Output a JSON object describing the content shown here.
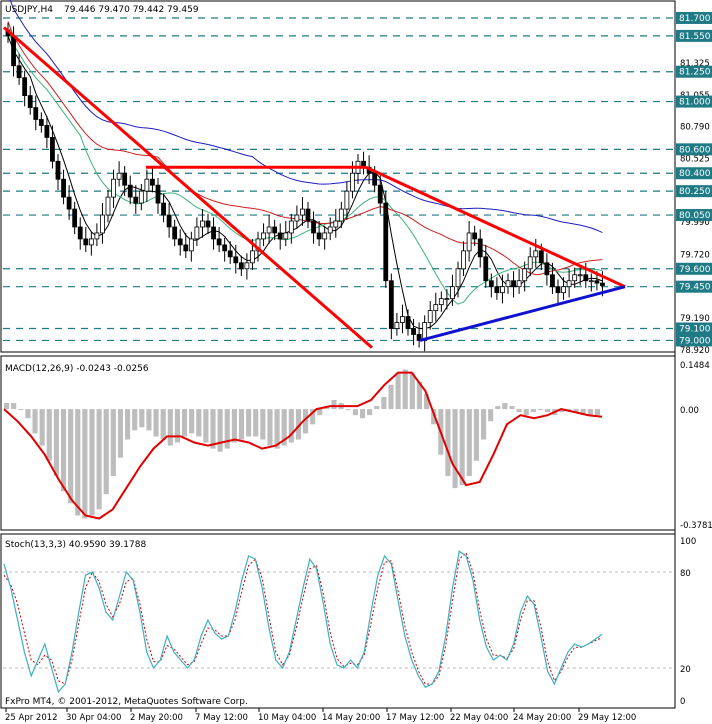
{
  "chart_data": [
    {
      "type": "candlestick",
      "panel": "price",
      "title": "USDJPY,H4",
      "ohlc_label": "79.446 79.470 79.442 79.459",
      "ylim": [
        78.92,
        81.75
      ],
      "ytick_labels": [
        "81.700",
        "81.550",
        "81.325",
        "81.250",
        "81.055",
        "81.000",
        "80.790",
        "80.600",
        "80.525",
        "80.400",
        "80.250",
        "80.050",
        "79.990",
        "79.720",
        "79.600",
        "79.455",
        "79.450",
        "79.190",
        "79.100",
        "79.000",
        "78.920"
      ],
      "level_tags": [
        {
          "label": "81.700",
          "value": 81.7
        },
        {
          "label": "81.550",
          "value": 81.55
        },
        {
          "label": "81.250",
          "value": 81.25
        },
        {
          "label": "81.000",
          "value": 81.0
        },
        {
          "label": "80.600",
          "value": 80.6
        },
        {
          "label": "80.400",
          "value": 80.4
        },
        {
          "label": "80.250",
          "value": 80.25
        },
        {
          "label": "80.050",
          "value": 80.05
        },
        {
          "label": "79.600",
          "value": 79.6
        },
        {
          "label": "79.450",
          "value": 79.45
        },
        {
          "label": "79.100",
          "value": 79.1
        },
        {
          "label": "79.000",
          "value": 79.0
        }
      ],
      "close_series": [
        81.55,
        81.3,
        81.2,
        81.05,
        80.95,
        80.85,
        80.8,
        80.7,
        80.5,
        80.35,
        80.2,
        80.1,
        79.95,
        79.85,
        79.8,
        79.85,
        79.9,
        80.05,
        80.2,
        80.35,
        80.4,
        80.3,
        80.2,
        80.15,
        80.25,
        80.35,
        80.3,
        80.15,
        80.05,
        79.95,
        79.85,
        79.8,
        79.75,
        79.85,
        79.95,
        80.0,
        79.95,
        79.85,
        79.8,
        79.75,
        79.7,
        79.65,
        79.6,
        79.65,
        79.75,
        79.85,
        79.9,
        79.95,
        79.9,
        79.85,
        79.9,
        80.0,
        80.05,
        80.1,
        80.0,
        79.9,
        79.85,
        79.9,
        79.95,
        80.0,
        80.1,
        80.25,
        80.4,
        80.5,
        80.45,
        80.4,
        80.3,
        80.15,
        79.5,
        79.1,
        79.15,
        79.2,
        79.1,
        79.05,
        79.0,
        79.15,
        79.25,
        79.3,
        79.35,
        79.35,
        79.45,
        79.6,
        79.75,
        79.9,
        79.85,
        79.7,
        79.5,
        79.45,
        79.4,
        79.45,
        79.5,
        79.45,
        79.5,
        79.6,
        79.7,
        79.75,
        79.65,
        79.55,
        79.45,
        79.4,
        79.45,
        79.5,
        79.55,
        79.55,
        79.5,
        79.5,
        79.48,
        79.46
      ],
      "trendlines": [
        {
          "name": "descending-channel-upper",
          "color": "#ff0000",
          "points": [
            [
              "25 Apr 2012",
              81.62
            ],
            [
              "17 May 12:00",
              78.94
            ]
          ]
        },
        {
          "name": "triangle-upper",
          "color": "#ff0000",
          "points": [
            [
              "17 May 00:00",
              80.45
            ],
            [
              "30 May 08:00",
              79.45
            ]
          ]
        },
        {
          "name": "resistance-80.45",
          "color": "#ff0000",
          "points": [
            [
              "3 May 04:00",
              80.45
            ],
            [
              "17 May 00:00",
              80.45
            ]
          ]
        },
        {
          "name": "triangle-lower",
          "color": "#1010d0",
          "points": [
            [
              "17 May 20:00",
              79.0
            ],
            [
              "30 May 08:00",
              79.45
            ]
          ]
        }
      ],
      "xtick_labels": [
        "25 Apr 2012",
        "30 Apr 04:00",
        "2 May 20:00",
        "7 May 12:00",
        "10 May 04:00",
        "14 May 20:00",
        "17 May 12:00",
        "22 May 04:00",
        "24 May 20:00",
        "29 May 12:00"
      ]
    },
    {
      "type": "histogram+line",
      "panel": "macd",
      "title": "MACD(12,26,9) -0.0243 -0.0256",
      "ylim": [
        -0.3781,
        0.1484
      ],
      "ytick_labels": [
        "0.1484",
        "0.00",
        "-0.3781"
      ],
      "histogram": [
        0.02,
        0.02,
        0.0,
        -0.03,
        -0.08,
        -0.12,
        -0.17,
        -0.22,
        -0.27,
        -0.31,
        -0.35,
        -0.36,
        -0.35,
        -0.33,
        -0.28,
        -0.22,
        -0.16,
        -0.1,
        -0.07,
        -0.06,
        -0.07,
        -0.09,
        -0.1,
        -0.12,
        -0.11,
        -0.09,
        -0.08,
        -0.09,
        -0.11,
        -0.13,
        -0.14,
        -0.13,
        -0.11,
        -0.1,
        -0.09,
        -0.09,
        -0.1,
        -0.12,
        -0.13,
        -0.12,
        -0.11,
        -0.1,
        -0.08,
        -0.05,
        -0.02,
        0.01,
        0.03,
        0.02,
        0.0,
        -0.02,
        -0.03,
        -0.02,
        0.01,
        0.04,
        0.08,
        0.12,
        0.13,
        0.12,
        0.09,
        0.05,
        -0.05,
        -0.15,
        -0.22,
        -0.26,
        -0.25,
        -0.22,
        -0.17,
        -0.1,
        -0.04,
        0.01,
        0.02,
        0.01,
        -0.01,
        -0.02,
        -0.01,
        0.0,
        -0.01,
        -0.02,
        -0.01,
        0.0,
        -0.01,
        -0.02,
        -0.02,
        -0.02
      ],
      "signal": [
        0.0,
        -0.04,
        -0.09,
        -0.15,
        -0.23,
        -0.3,
        -0.35,
        -0.36,
        -0.33,
        -0.26,
        -0.19,
        -0.13,
        -0.09,
        -0.09,
        -0.11,
        -0.12,
        -0.11,
        -0.1,
        -0.11,
        -0.13,
        -0.12,
        -0.09,
        -0.04,
        0.0,
        0.01,
        0.01,
        0.01,
        0.03,
        0.08,
        0.12,
        0.12,
        0.06,
        -0.06,
        -0.18,
        -0.25,
        -0.24,
        -0.15,
        -0.05,
        -0.02,
        -0.03,
        -0.02,
        0.0,
        -0.01,
        -0.02,
        -0.025
      ]
    },
    {
      "type": "line",
      "panel": "stochastic",
      "title": "Stoch(13,3,3) 40.9590 39.1788",
      "ylim": [
        0,
        100
      ],
      "ytick_labels": [
        "100",
        "80",
        "20",
        "0"
      ],
      "main": [
        85,
        70,
        50,
        30,
        15,
        25,
        35,
        20,
        5,
        10,
        30,
        55,
        78,
        80,
        70,
        55,
        50,
        65,
        80,
        75,
        55,
        30,
        20,
        25,
        40,
        30,
        25,
        20,
        25,
        40,
        50,
        42,
        38,
        40,
        55,
        75,
        90,
        88,
        70,
        45,
        25,
        20,
        30,
        50,
        70,
        88,
        82,
        60,
        35,
        22,
        20,
        25,
        20,
        30,
        55,
        78,
        90,
        85,
        62,
        40,
        25,
        15,
        8,
        10,
        18,
        40,
        70,
        93,
        90,
        75,
        50,
        33,
        25,
        28,
        25,
        35,
        55,
        65,
        60,
        40,
        18,
        10,
        20,
        30,
        35,
        33,
        35,
        38,
        41
      ],
      "signal": [
        78,
        72,
        60,
        42,
        25,
        22,
        28,
        25,
        12,
        10,
        25,
        48,
        70,
        80,
        74,
        60,
        52,
        60,
        74,
        76,
        60,
        38,
        24,
        24,
        34,
        32,
        27,
        22,
        24,
        35,
        45,
        44,
        40,
        40,
        50,
        68,
        84,
        88,
        76,
        52,
        30,
        22,
        28,
        45,
        64,
        82,
        84,
        66,
        42,
        26,
        21,
        23,
        22,
        28,
        48,
        70,
        86,
        87,
        68,
        46,
        30,
        18,
        10,
        10,
        15,
        34,
        62,
        88,
        92,
        80,
        56,
        38,
        28,
        28,
        26,
        32,
        50,
        62,
        62,
        46,
        24,
        12,
        18,
        27,
        33,
        33,
        35,
        37,
        39
      ]
    }
  ],
  "footer": {
    "copyright": "FxPro MT4, © 2001-2012, MetaQuotes Software Corp."
  },
  "colors": {
    "tag_bg": "#1e7a84",
    "grid_dash": "#1e7a84",
    "trend_red": "#ff0000",
    "trend_blue": "#1010d0",
    "ma_blue": "#1d1dbd",
    "ma_red": "#cc1f1f",
    "ma_green": "#3cb37a",
    "ma_black": "#000000",
    "macd_hist": "#bdbdbd",
    "macd_signal": "#e00000",
    "stoch_main": "#3ab0c0",
    "stoch_signal": "#cc0000"
  }
}
